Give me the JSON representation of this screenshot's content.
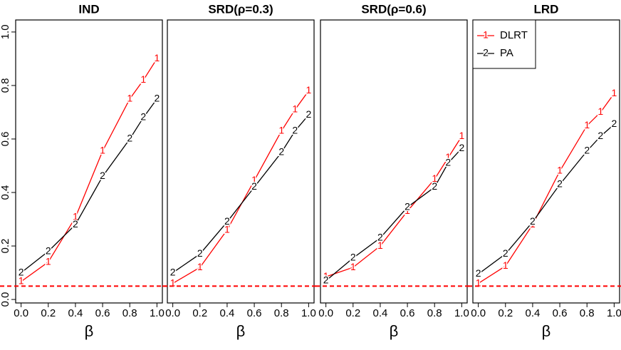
{
  "chart_data": [
    {
      "type": "line",
      "title": "IND",
      "x_label": "β",
      "x": [
        0,
        0.2,
        0.4,
        0.6,
        0.8,
        0.9,
        1.0
      ],
      "series": [
        {
          "marker": "1",
          "color": "#ff0000",
          "values": [
            0.067,
            0.14,
            0.307,
            0.555,
            0.75,
            0.82,
            0.9
          ]
        },
        {
          "marker": "2",
          "color": "#000000",
          "values": [
            0.1,
            0.18,
            0.28,
            0.46,
            0.6,
            0.68,
            0.75
          ]
        }
      ],
      "xlim": [
        -0.04,
        1.04
      ],
      "ylim": [
        -0.013,
        1.045
      ],
      "xticks": [
        {
          "value": 0,
          "label": "0.0"
        },
        {
          "value": 0.2,
          "label": "0.2"
        },
        {
          "value": 0.4,
          "label": "0.4"
        },
        {
          "value": 0.6,
          "label": "0.6"
        },
        {
          "value": 0.8,
          "label": "0.8"
        },
        {
          "value": 1,
          "label": "1.0"
        }
      ],
      "yticks": [
        {
          "value": 0,
          "label": "0.0"
        },
        {
          "value": 0.2,
          "label": "0.2"
        },
        {
          "value": 0.4,
          "label": "0.4"
        },
        {
          "value": 0.6,
          "label": "0.6"
        },
        {
          "value": 0.8,
          "label": "0.8"
        },
        {
          "value": 1,
          "label": "1.0"
        }
      ],
      "hline": 0.05,
      "hline_color": "#ff0000"
    },
    {
      "type": "line",
      "title": "SRD(ρ=0.3)",
      "x_label": "β",
      "x": [
        0,
        0.2,
        0.4,
        0.6,
        0.8,
        0.9,
        1.0
      ],
      "series": [
        {
          "marker": "1",
          "color": "#ff0000",
          "values": [
            0.06,
            0.12,
            0.26,
            0.445,
            0.63,
            0.71,
            0.78
          ]
        },
        {
          "marker": "2",
          "color": "#000000",
          "values": [
            0.1,
            0.17,
            0.29,
            0.42,
            0.55,
            0.63,
            0.69
          ]
        }
      ],
      "xlim": [
        -0.04,
        1.04
      ],
      "ylim": [
        -0.013,
        1.045
      ],
      "xticks": [
        {
          "value": 0,
          "label": "0.0"
        },
        {
          "value": 0.2,
          "label": "0.2"
        },
        {
          "value": 0.4,
          "label": "0.4"
        },
        {
          "value": 0.6,
          "label": "0.6"
        },
        {
          "value": 0.8,
          "label": "0.8"
        },
        {
          "value": 1,
          "label": "1.0"
        }
      ],
      "hline": 0.05,
      "hline_color": "#ff0000"
    },
    {
      "type": "line",
      "title": "SRD(ρ=0.6)",
      "x_label": "β",
      "x": [
        0,
        0.2,
        0.4,
        0.6,
        0.8,
        0.9,
        1.0
      ],
      "series": [
        {
          "marker": "1",
          "color": "#ff0000",
          "values": [
            0.085,
            0.12,
            0.2,
            0.33,
            0.45,
            0.53,
            0.61
          ]
        },
        {
          "marker": "2",
          "color": "#000000",
          "values": [
            0.07,
            0.155,
            0.23,
            0.345,
            0.42,
            0.51,
            0.565
          ]
        }
      ],
      "xlim": [
        -0.04,
        1.04
      ],
      "ylim": [
        -0.013,
        1.045
      ],
      "xticks": [
        {
          "value": 0,
          "label": "0.0"
        },
        {
          "value": 0.2,
          "label": "0.2"
        },
        {
          "value": 0.4,
          "label": "0.4"
        },
        {
          "value": 0.6,
          "label": "0.6"
        },
        {
          "value": 0.8,
          "label": "0.8"
        },
        {
          "value": 1,
          "label": "1.0"
        }
      ],
      "hline": 0.05,
      "hline_color": "#ff0000"
    },
    {
      "type": "line",
      "title": "LRD",
      "x_label": "β",
      "x": [
        0,
        0.2,
        0.4,
        0.6,
        0.8,
        0.9,
        1.0
      ],
      "series": [
        {
          "name": "DLRT",
          "marker": "1",
          "color": "#ff0000",
          "values": [
            0.06,
            0.125,
            0.28,
            0.48,
            0.65,
            0.7,
            0.77
          ]
        },
        {
          "name": "PA",
          "marker": "2",
          "color": "#000000",
          "values": [
            0.095,
            0.17,
            0.29,
            0.43,
            0.555,
            0.61,
            0.655
          ]
        }
      ],
      "xlim": [
        -0.04,
        1.04
      ],
      "ylim": [
        -0.013,
        1.045
      ],
      "xticks": [
        {
          "value": 0,
          "label": "0.0"
        },
        {
          "value": 0.2,
          "label": "0.2"
        },
        {
          "value": 0.4,
          "label": "0.4"
        },
        {
          "value": 0.6,
          "label": "0.6"
        },
        {
          "value": 0.8,
          "label": "0.8"
        },
        {
          "value": 1,
          "label": "1.0"
        }
      ],
      "hline": 0.05,
      "hline_color": "#ff0000",
      "legend": "topleft"
    }
  ]
}
